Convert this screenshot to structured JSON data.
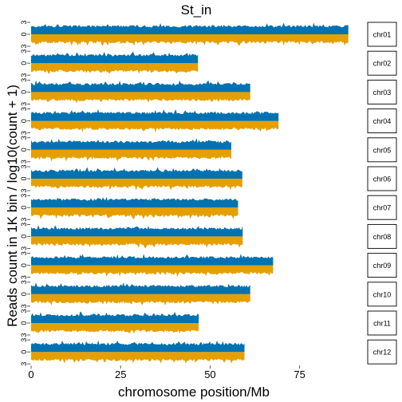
{
  "chart_data": {
    "type": "area",
    "title": "St_in",
    "xlabel": "chromosome position/Mb",
    "ylabel": "Reads count in 1K bin / log10(count + 1)",
    "x_ticks": [
      0,
      25,
      50,
      75
    ],
    "x_range": [
      0,
      90
    ],
    "y_range": [
      -3,
      3
    ],
    "y_ticks": [
      {
        "value": 3,
        "label": "3"
      },
      {
        "value": 0,
        "label": "0"
      },
      {
        "value": -3,
        "label": "3"
      }
    ],
    "series_colors": {
      "positive": "#0072B2",
      "negative": "#E69F00"
    },
    "strip_fill": "#ffffff",
    "grid": false,
    "facets": [
      {
        "label": "chr01",
        "length_mb": 88.6
      },
      {
        "label": "chr02",
        "length_mb": 46.6
      },
      {
        "label": "chr03",
        "length_mb": 61.2
      },
      {
        "label": "chr04",
        "length_mb": 69.1
      },
      {
        "label": "chr05",
        "length_mb": 55.9
      },
      {
        "label": "chr06",
        "length_mb": 59.0
      },
      {
        "label": "chr07",
        "length_mb": 57.8
      },
      {
        "label": "chr08",
        "length_mb": 59.1
      },
      {
        "label": "chr09",
        "length_mb": 67.6
      },
      {
        "label": "chr10",
        "length_mb": 61.2
      },
      {
        "label": "chr11",
        "length_mb": 46.8
      },
      {
        "label": "chr12",
        "length_mb": 59.6
      }
    ]
  }
}
